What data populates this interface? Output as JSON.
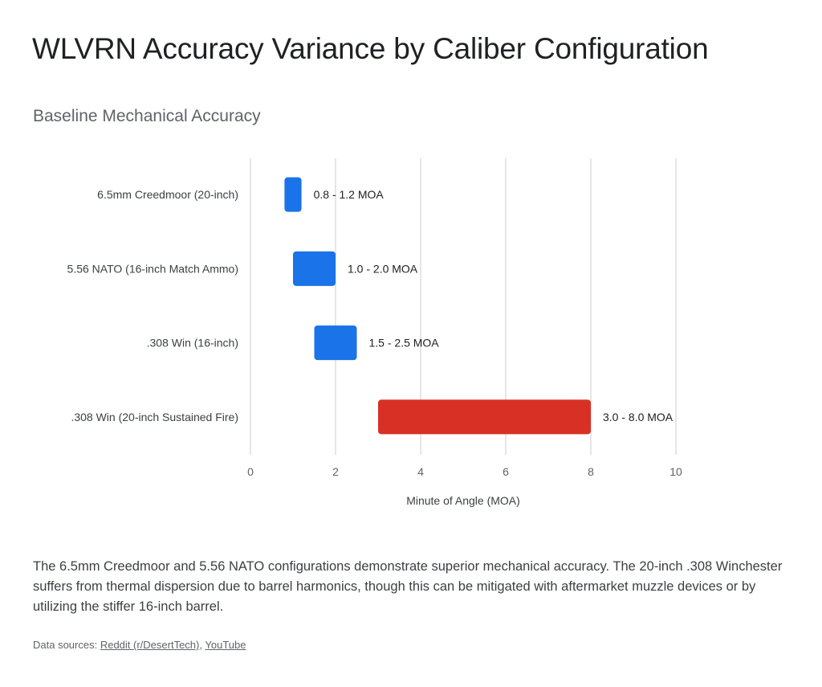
{
  "title": "WLVRN Accuracy Variance by Caliber Configuration",
  "chart_data": {
    "type": "bar",
    "orientation": "horizontal",
    "subtype": "floating-range",
    "title": "Baseline Mechanical Accuracy",
    "xlabel": "Minute of Angle (MOA)",
    "ylabel": "",
    "xlim": [
      0,
      10
    ],
    "xticks": [
      0,
      2,
      4,
      6,
      8,
      10
    ],
    "grid": true,
    "categories": [
      "6.5mm Creedmoor (20-inch)",
      "5.56 NATO (16-inch Match Ammo)",
      ".308 Win (16-inch)",
      ".308 Win (20-inch Sustained Fire)"
    ],
    "ranges": [
      [
        0.8,
        1.2
      ],
      [
        1.0,
        2.0
      ],
      [
        1.5,
        2.5
      ],
      [
        3.0,
        8.0
      ]
    ],
    "data_labels": [
      "0.8 - 1.2 MOA",
      "1.0 - 2.0 MOA",
      "1.5 - 2.5 MOA",
      "3.0 - 8.0 MOA"
    ],
    "colors": [
      "#1a73e8",
      "#1a73e8",
      "#1a73e8",
      "#d93025"
    ]
  },
  "summary": "The 6.5mm Creedmoor and 5.56 NATO configurations demonstrate superior mechanical accuracy. The 20-inch .308 Winchester suffers from thermal dispersion due to barrel harmonics, though this can be mitigated with aftermarket muzzle devices or by utilizing the stiffer 16-inch barrel.",
  "sources": {
    "prefix": "Data sources: ",
    "links": [
      "Reddit (r/DesertTech)",
      "YouTube"
    ],
    "separator": ", "
  }
}
